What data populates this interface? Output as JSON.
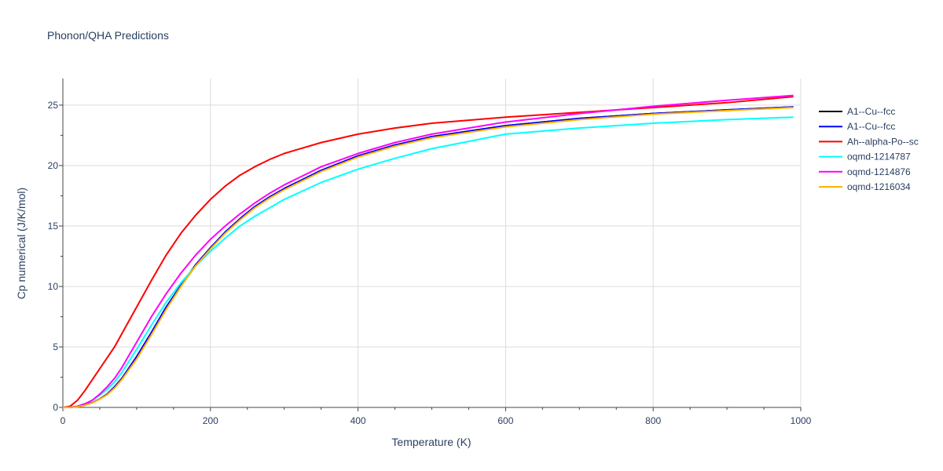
{
  "chart_data": {
    "type": "line",
    "title": "Phonon/QHA Predictions",
    "xlabel": "Temperature (K)",
    "ylabel": "Cp numerical (J/K/mol)",
    "xlim": [
      0,
      1000
    ],
    "ylim": [
      0,
      27.2
    ],
    "xticks": [
      0,
      200,
      400,
      600,
      800,
      1000
    ],
    "yticks": [
      0,
      5,
      10,
      15,
      20,
      25
    ],
    "grid": true,
    "legend_position": "top-right",
    "series": [
      {
        "name": "A1--Cu--fcc",
        "color": "#000000",
        "x": [
          0,
          10,
          20,
          30,
          40,
          50,
          60,
          70,
          80,
          100,
          120,
          140,
          160,
          180,
          200,
          220,
          240,
          260,
          280,
          300,
          350,
          400,
          450,
          500,
          600,
          700,
          800,
          900,
          990
        ],
        "y": [
          0,
          0.01,
          0.06,
          0.2,
          0.4,
          0.7,
          1.1,
          1.7,
          2.4,
          4.2,
          6.2,
          8.3,
          10.1,
          11.8,
          13.2,
          14.5,
          15.6,
          16.6,
          17.4,
          18.1,
          19.6,
          20.8,
          21.7,
          22.4,
          23.3,
          23.9,
          24.3,
          24.6,
          24.85
        ]
      },
      {
        "name": "A1--Cu--fcc",
        "color": "#0000ff",
        "x": [
          0,
          10,
          20,
          30,
          40,
          50,
          60,
          70,
          80,
          100,
          120,
          140,
          160,
          180,
          200,
          220,
          240,
          260,
          280,
          300,
          350,
          400,
          450,
          500,
          600,
          700,
          800,
          900,
          990
        ],
        "y": [
          0,
          0.01,
          0.06,
          0.2,
          0.4,
          0.7,
          1.1,
          1.7,
          2.4,
          4.2,
          6.2,
          8.3,
          10.1,
          11.8,
          13.2,
          14.5,
          15.6,
          16.6,
          17.4,
          18.1,
          19.6,
          20.8,
          21.7,
          22.4,
          23.3,
          23.9,
          24.3,
          24.6,
          24.85
        ]
      },
      {
        "name": "Ah--alpha-Po--sc",
        "color": "#ff0000",
        "x": [
          0,
          10,
          20,
          30,
          40,
          50,
          60,
          70,
          80,
          100,
          120,
          140,
          160,
          180,
          200,
          220,
          240,
          260,
          280,
          300,
          350,
          400,
          450,
          500,
          600,
          700,
          800,
          900,
          990
        ],
        "y": [
          0,
          0.1,
          0.6,
          1.4,
          2.3,
          3.2,
          4.1,
          5.0,
          6.1,
          8.3,
          10.5,
          12.6,
          14.4,
          15.9,
          17.2,
          18.3,
          19.2,
          19.9,
          20.5,
          21.0,
          21.9,
          22.6,
          23.1,
          23.5,
          24.0,
          24.4,
          24.8,
          25.2,
          25.7
        ]
      },
      {
        "name": "oqmd-1214787",
        "color": "#00ffff",
        "x": [
          0,
          10,
          20,
          30,
          40,
          50,
          60,
          70,
          80,
          100,
          120,
          140,
          160,
          180,
          200,
          220,
          240,
          260,
          280,
          300,
          350,
          400,
          450,
          500,
          600,
          700,
          800,
          900,
          990
        ],
        "y": [
          0,
          0.02,
          0.1,
          0.3,
          0.6,
          1.0,
          1.5,
          2.1,
          2.9,
          4.8,
          6.8,
          8.7,
          10.3,
          11.7,
          12.9,
          14.0,
          15.0,
          15.8,
          16.5,
          17.2,
          18.6,
          19.7,
          20.6,
          21.4,
          22.6,
          23.1,
          23.5,
          23.8,
          24.0
        ]
      },
      {
        "name": "oqmd-1214876",
        "color": "#ff00ff",
        "x": [
          0,
          10,
          20,
          30,
          40,
          50,
          60,
          70,
          80,
          100,
          120,
          140,
          160,
          180,
          200,
          220,
          240,
          260,
          280,
          300,
          350,
          400,
          450,
          500,
          600,
          700,
          800,
          900,
          990
        ],
        "y": [
          0,
          0.02,
          0.1,
          0.3,
          0.6,
          1.1,
          1.7,
          2.4,
          3.3,
          5.4,
          7.5,
          9.4,
          11.1,
          12.6,
          13.9,
          15.0,
          16.0,
          16.9,
          17.7,
          18.4,
          19.9,
          21.0,
          21.9,
          22.6,
          23.6,
          24.3,
          24.9,
          25.4,
          25.8
        ]
      },
      {
        "name": "oqmd-1216034",
        "color": "#ffb300",
        "x": [
          0,
          10,
          20,
          30,
          40,
          50,
          60,
          70,
          80,
          100,
          120,
          140,
          160,
          180,
          200,
          220,
          240,
          260,
          280,
          300,
          350,
          400,
          450,
          500,
          600,
          700,
          800,
          900,
          990
        ],
        "y": [
          0,
          0.01,
          0.05,
          0.18,
          0.38,
          0.68,
          1.05,
          1.6,
          2.3,
          4.0,
          6.0,
          8.1,
          10.0,
          11.7,
          13.1,
          14.4,
          15.5,
          16.5,
          17.3,
          18.0,
          19.5,
          20.7,
          21.6,
          22.3,
          23.2,
          23.8,
          24.25,
          24.55,
          24.8
        ]
      }
    ]
  }
}
